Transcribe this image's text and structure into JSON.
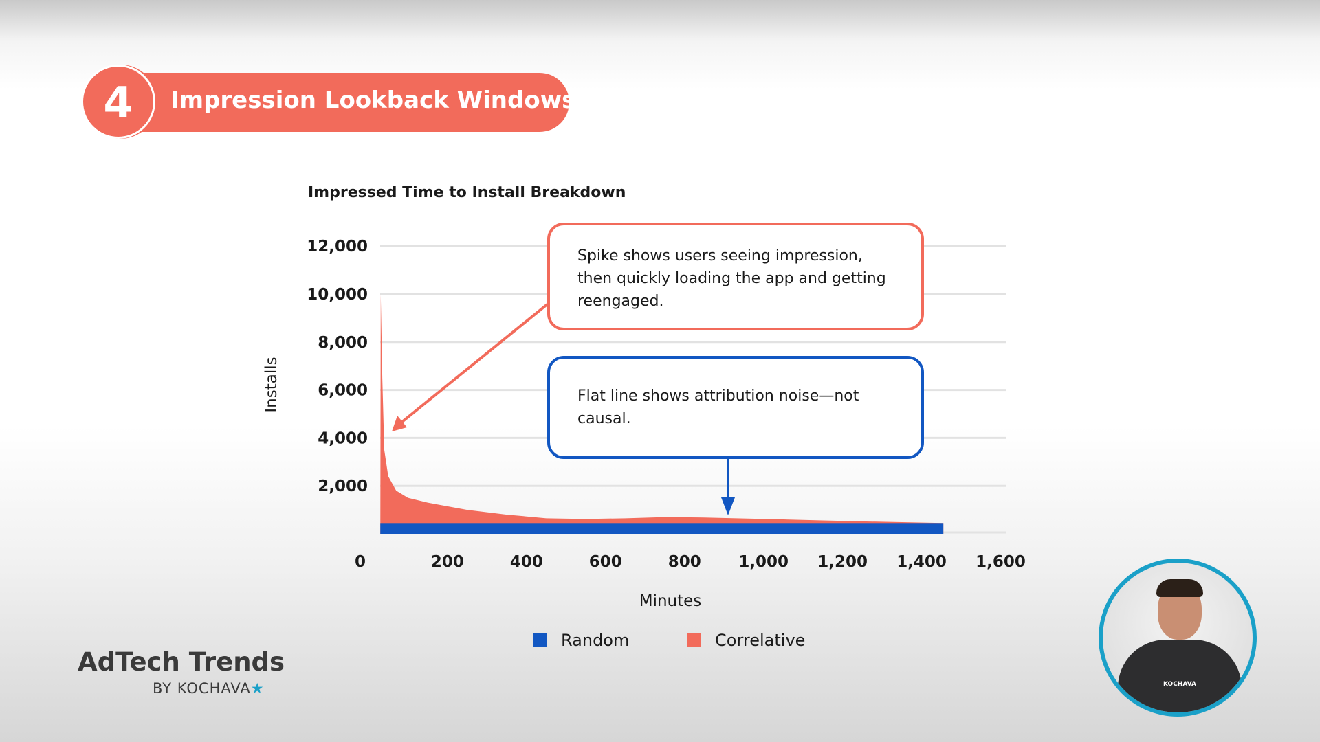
{
  "header": {
    "step_number": "4",
    "title": "Impression Lookback Windows"
  },
  "callouts": {
    "spike": "Spike shows users seeing impression, then quickly loading the app and getting reengaged.",
    "flat": "Flat line shows attribution noise—not causal."
  },
  "branding": {
    "title": "AdTech Trends",
    "byline": "BY KOCHAVA",
    "star": "★",
    "shirt_text": "KOCHAVA"
  },
  "colors": {
    "accent": "#f26b5b",
    "random": "#1257c2",
    "ring": "#1aa0c8"
  },
  "chart_data": {
    "type": "area",
    "title": "Impressed Time to Install Breakdown",
    "xlabel": "Minutes",
    "ylabel": "Installs",
    "xlim": [
      0,
      1600
    ],
    "ylim": [
      0,
      12000
    ],
    "xticks": [
      "0",
      "200",
      "400",
      "600",
      "800",
      "1,000",
      "1,200",
      "1,400",
      "1,600"
    ],
    "xtick_values": [
      0,
      200,
      400,
      600,
      800,
      1000,
      1200,
      1400,
      1600
    ],
    "yticks": [
      "2,000",
      "4,000",
      "6,000",
      "8,000",
      "10,000",
      "12,000"
    ],
    "ytick_values": [
      2000,
      4000,
      6000,
      8000,
      10000,
      12000
    ],
    "grid": true,
    "legend_position": "bottom",
    "series": [
      {
        "name": "Random",
        "color": "#1257c2",
        "x": [
          30,
          1455
        ],
        "y": [
          450,
          450
        ]
      },
      {
        "name": "Correlative",
        "color": "#f26b5b",
        "x": [
          30,
          31,
          35,
          40,
          50,
          70,
          100,
          150,
          250,
          350,
          450,
          550,
          650,
          750,
          850,
          950,
          1050,
          1150,
          1250,
          1455
        ],
        "y": [
          0,
          10000,
          6500,
          3500,
          2400,
          1800,
          1500,
          1300,
          1000,
          800,
          650,
          620,
          650,
          700,
          680,
          640,
          600,
          560,
          520,
          450
        ]
      }
    ]
  }
}
